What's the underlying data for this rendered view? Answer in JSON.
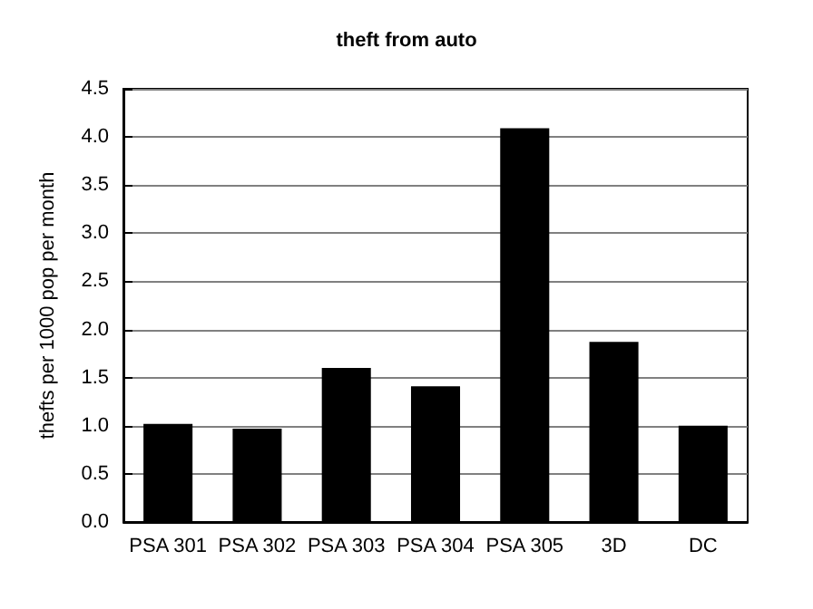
{
  "chart_data": {
    "type": "bar",
    "title": "theft from auto",
    "ylabel": "thefts per 1000 pop per month",
    "categories": [
      "PSA 301",
      "PSA 302",
      "PSA 303",
      "PSA 304",
      "PSA 305",
      "3D",
      "DC"
    ],
    "values": [
      1.02,
      0.97,
      1.6,
      1.41,
      4.09,
      1.87,
      1.0
    ],
    "color": "#000000",
    "ylim": [
      0,
      4.5
    ],
    "yticks": [
      {
        "value": 0,
        "label": "0.0"
      },
      {
        "value": 0.5,
        "label": "0.5"
      },
      {
        "value": 1,
        "label": "1.0"
      },
      {
        "value": 1.5,
        "label": "1.5"
      },
      {
        "value": 2,
        "label": "2.0"
      },
      {
        "value": 2.5,
        "label": "2.5"
      },
      {
        "value": 3,
        "label": "3.0"
      },
      {
        "value": 3.5,
        "label": "3.5"
      },
      {
        "value": 4,
        "label": "4.0"
      },
      {
        "value": 4.5,
        "label": "4.5"
      }
    ],
    "grid": "y"
  }
}
